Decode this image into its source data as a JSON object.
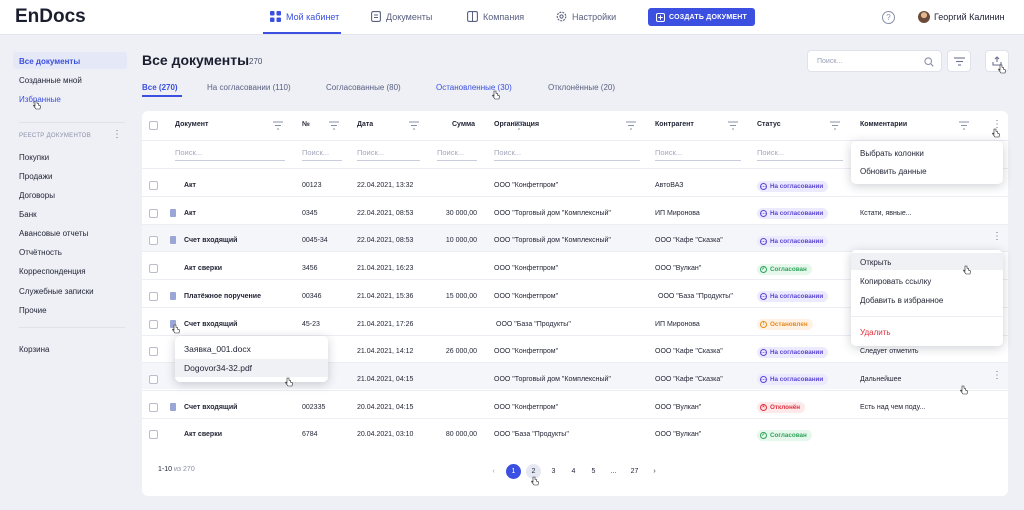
{
  "app": {
    "logo": "EnDocs",
    "user": "Георгий Калинин",
    "help": "?"
  },
  "nav": [
    {
      "label": "Мой кабинет"
    },
    {
      "label": "Документы"
    },
    {
      "label": "Компания"
    },
    {
      "label": "Настройки"
    }
  ],
  "create_button": "СОЗДАТЬ ДОКУМЕНТ",
  "sidebar": {
    "items": [
      "Все документы",
      "Созданные мной",
      "Избранные"
    ],
    "registry_label": "РЕЕСТР ДОКУМЕНТОВ",
    "registry": [
      "Покупки",
      "Продажи",
      "Договоры",
      "Банк",
      "Авансовые отчеты",
      "Отчётность",
      "Корреспонденция",
      "Служебные записки",
      "Прочие"
    ],
    "trash": "Корзина"
  },
  "page": {
    "title": "Все документы",
    "count": "270",
    "search_placeholder": "Поиск..."
  },
  "tabs": [
    "Все (270)",
    "На согласовании (110)",
    "Согласованные (80)",
    "Остановленные (30)",
    "Отклонённые (20)"
  ],
  "table": {
    "headers": [
      "Документ",
      "№",
      "Дата",
      "Сумма",
      "Организация",
      "Контрагент",
      "Статус",
      "Комментарии"
    ],
    "filter_placeholder": "Поиск...",
    "rows": [
      {
        "doc": "Акт",
        "num": "00123",
        "date": "22.04.2021, 13:32",
        "sum": "",
        "org": "ООО \"Конфетпром\"",
        "ctr": "АвтоВАЗ",
        "status": "На согласовании",
        "comment": ""
      },
      {
        "doc": "Акт",
        "num": "0345",
        "date": "22.04.2021, 08:53",
        "sum": "30 000,00",
        "org": "ООО \"Торговый дом \"Комплексный\"",
        "ctr": "ИП Миронова",
        "status": "На согласовании",
        "comment": "Кстати, явные..."
      },
      {
        "doc": "Счет входящий",
        "num": "0045-34",
        "date": "22.04.2021, 08:53",
        "sum": "10 000,00",
        "org": "ООО \"Торговый дом \"Комплексный\"",
        "ctr": "ООО \"Кафе \"Сказка\"",
        "status": "На согласовании",
        "comment": ""
      },
      {
        "doc": "Акт сверки",
        "num": "3456",
        "date": "21.04.2021, 16:23",
        "sum": "",
        "org": "ООО \"Конфетпром\"",
        "ctr": "ООО \"Вулкан\"",
        "status": "Согласован",
        "comment": ""
      },
      {
        "doc": "Платёжное поручение",
        "num": "00346",
        "date": "21.04.2021, 15:36",
        "sum": "15 000,00",
        "org": "ООО \"Конфетпром\"",
        "ctr": "ООО \"База \"Продукты\"",
        "status": "На согласовании",
        "comment": ""
      },
      {
        "doc": "Счет входящий",
        "num": "45-23",
        "date": "21.04.2021, 17:26",
        "sum": "",
        "org": "ООО \"База \"Продукты\"",
        "ctr": "ИП Миронова",
        "status": "Остановлен",
        "comment": ""
      },
      {
        "doc": "",
        "num": "",
        "date": "21.04.2021, 14:12",
        "sum": "26 000,00",
        "org": "ООО \"Конфетпром\"",
        "ctr": "ООО \"Кафе \"Сказка\"",
        "status": "На согласовании",
        "comment": "Следует отметить"
      },
      {
        "doc": "",
        "num": "",
        "date": "21.04.2021, 04:15",
        "sum": "",
        "org": "ООО \"Торговый дом \"Комплексный\"",
        "ctr": "ООО \"Кафе \"Сказка\"",
        "status": "На согласовании",
        "comment": "Дальнейшее"
      },
      {
        "doc": "Счет входящий",
        "num": "002335",
        "date": "20.04.2021, 04:15",
        "sum": "",
        "org": "ООО \"Конфетпром\"",
        "ctr": "ООО \"Вулкан\"",
        "status": "Отклонён",
        "comment": "Есть над чем поду..."
      },
      {
        "doc": "Акт сверки",
        "num": "6784",
        "date": "20.04.2021, 03:10",
        "sum": "80 000,00",
        "org": "ООО \"База \"Продукты\"",
        "ctr": "ООО \"Вулкан\"",
        "status": "Согласован",
        "comment": ""
      }
    ]
  },
  "column_menu": [
    "Выбрать колонки",
    "Обновить  данные"
  ],
  "row_menu": [
    "Открыть",
    "Копировать ссылку",
    "Добавить в избранное",
    "Удалить"
  ],
  "files_menu": [
    "Заявка_001.docx",
    "Dogovor34-32.pdf"
  ],
  "pagination": {
    "range": "1-10",
    "of": "из 270",
    "pages": [
      "1",
      "2",
      "3",
      "4",
      "5",
      "...",
      "27"
    ],
    "prev": "‹",
    "next": "›"
  },
  "colors": {
    "accent": "#3b4fe0",
    "pending": "#5c45d1",
    "approved": "#2ea35a",
    "stopped": "#e68a1a",
    "rejected": "#e0303f",
    "delete": "#e0303f"
  }
}
